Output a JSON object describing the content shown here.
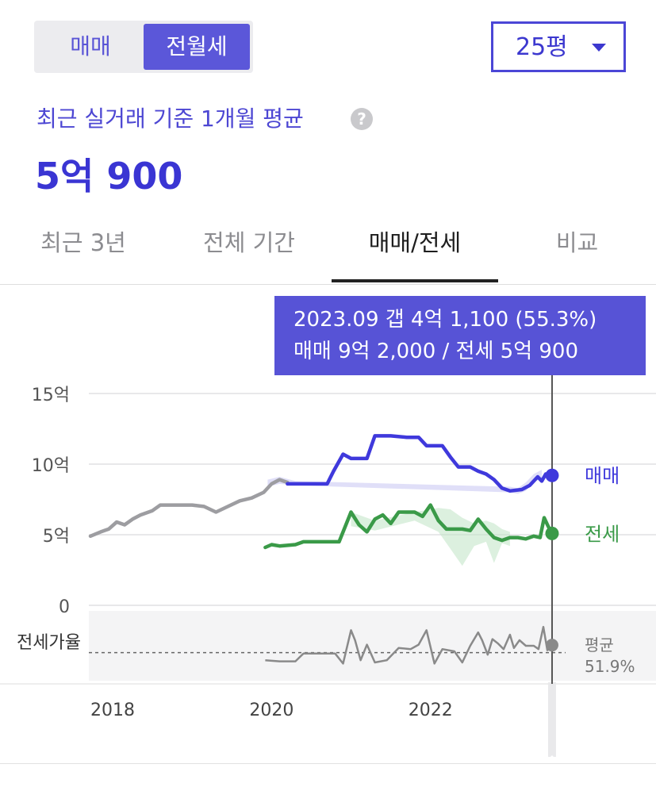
{
  "segment": {
    "items": [
      "매매",
      "전월세"
    ],
    "active": 1
  },
  "size_select": {
    "label": "25평"
  },
  "summary": {
    "subtitle": "최근 실거래 기준 1개월 평균",
    "help_glyph": "?",
    "price": "5억 900"
  },
  "tabs": {
    "items": [
      "최근 3년",
      "전체 기간",
      "매매/전세",
      "비교"
    ],
    "active": 2
  },
  "tooltip": {
    "line1": "2023.09  갭 4억 1,100 (55.3%)",
    "line2": "매매 9억 2,000 / 전세 5억 900"
  },
  "colors": {
    "accent": "#4a44d8",
    "sale": "#3f39dc",
    "jeonse": "#3a9a48",
    "ratio": "#8a8a8a"
  },
  "chart_data": {
    "type": "line",
    "y_unit": "억",
    "ylim": [
      0,
      15
    ],
    "yticks": [
      {
        "value": 15,
        "label": "15억"
      },
      {
        "value": 10,
        "label": "10억"
      },
      {
        "value": 5,
        "label": "5억"
      },
      {
        "value": 0,
        "label": "0"
      }
    ],
    "xlim": [
      2017.7,
      2023.7
    ],
    "xticks": [
      {
        "value": 2018,
        "label": "2018"
      },
      {
        "value": 2020,
        "label": "2020"
      },
      {
        "value": 2022,
        "label": "2022"
      }
    ],
    "series": [
      {
        "name": "매매",
        "segments": [
          [
            [
              2017.72,
              4.9
            ],
            [
              2017.85,
              5.2
            ],
            [
              2017.95,
              5.4
            ],
            [
              2018.05,
              5.9
            ],
            [
              2018.15,
              5.7
            ],
            [
              2018.25,
              6.1
            ],
            [
              2018.35,
              6.4
            ],
            [
              2018.5,
              6.7
            ],
            [
              2018.6,
              7.1
            ],
            [
              2018.8,
              7.1
            ],
            [
              2019.0,
              7.1
            ],
            [
              2019.15,
              7.0
            ],
            [
              2019.3,
              6.6
            ],
            [
              2019.45,
              7.0
            ],
            [
              2019.6,
              7.4
            ],
            [
              2019.75,
              7.6
            ],
            [
              2019.9,
              8.0
            ],
            [
              2020.0,
              8.6
            ],
            [
              2020.1,
              8.9
            ],
            [
              2020.2,
              8.7
            ]
          ],
          [
            [
              2020.2,
              8.6
            ],
            [
              2020.4,
              8.6
            ],
            [
              2020.7,
              8.6
            ],
            [
              2020.78,
              9.5
            ],
            [
              2020.9,
              10.7
            ],
            [
              2021.0,
              10.4
            ],
            [
              2021.2,
              10.4
            ],
            [
              2021.3,
              12.0
            ],
            [
              2021.5,
              12.0
            ],
            [
              2021.7,
              11.9
            ],
            [
              2021.85,
              11.9
            ],
            [
              2021.95,
              11.3
            ],
            [
              2022.15,
              11.3
            ],
            [
              2022.25,
              10.5
            ],
            [
              2022.35,
              9.8
            ],
            [
              2022.5,
              9.8
            ],
            [
              2022.6,
              9.5
            ],
            [
              2022.7,
              9.3
            ],
            [
              2022.8,
              8.9
            ],
            [
              2022.9,
              8.3
            ],
            [
              2023.0,
              8.1
            ],
            [
              2023.15,
              8.2
            ],
            [
              2023.25,
              8.5
            ],
            [
              2023.35,
              9.1
            ],
            [
              2023.4,
              8.8
            ],
            [
              2023.45,
              9.3
            ],
            [
              2023.53,
              9.2
            ]
          ]
        ],
        "band": [
          [
            2019.95,
            8.4,
            8.9
          ],
          [
            2020.1,
            8.6,
            9.1
          ],
          [
            2020.3,
            8.5,
            8.8
          ],
          [
            2023.0,
            8.0,
            8.4
          ],
          [
            2023.1,
            7.9,
            8.3
          ],
          [
            2023.2,
            8.1,
            8.7
          ],
          [
            2023.3,
            8.8,
            9.3
          ],
          [
            2023.4,
            8.9,
            9.6
          ]
        ]
      },
      {
        "name": "전세",
        "segments": [
          [
            [
              2019.92,
              4.1
            ],
            [
              2020.0,
              4.3
            ],
            [
              2020.1,
              4.2
            ],
            [
              2020.3,
              4.3
            ],
            [
              2020.4,
              4.5
            ],
            [
              2020.6,
              4.5
            ],
            [
              2020.85,
              4.5
            ],
            [
              2021.0,
              6.6
            ],
            [
              2021.1,
              5.7
            ],
            [
              2021.2,
              5.2
            ],
            [
              2021.3,
              6.1
            ],
            [
              2021.4,
              6.4
            ],
            [
              2021.5,
              5.8
            ],
            [
              2021.6,
              6.6
            ],
            [
              2021.8,
              6.6
            ],
            [
              2021.9,
              6.3
            ],
            [
              2022.0,
              7.1
            ],
            [
              2022.1,
              6.0
            ],
            [
              2022.2,
              5.4
            ],
            [
              2022.3,
              5.4
            ],
            [
              2022.4,
              5.4
            ],
            [
              2022.5,
              5.3
            ],
            [
              2022.6,
              6.1
            ],
            [
              2022.7,
              5.4
            ],
            [
              2022.8,
              4.8
            ],
            [
              2022.9,
              4.6
            ],
            [
              2023.0,
              4.8
            ],
            [
              2023.1,
              4.8
            ],
            [
              2023.2,
              4.7
            ],
            [
              2023.3,
              4.9
            ],
            [
              2023.38,
              4.8
            ],
            [
              2023.43,
              6.2
            ],
            [
              2023.48,
              5.6
            ],
            [
              2023.53,
              5.1
            ]
          ]
        ],
        "band": [
          [
            2021.0,
            5.6,
            6.6
          ],
          [
            2021.3,
            5.3,
            6.0
          ],
          [
            2021.8,
            6.0,
            6.6
          ],
          [
            2022.1,
            5.2,
            6.9
          ],
          [
            2022.25,
            4.0,
            6.8
          ],
          [
            2022.4,
            2.8,
            6.2
          ],
          [
            2022.55,
            4.2,
            5.8
          ],
          [
            2022.7,
            4.5,
            6.0
          ],
          [
            2022.8,
            3.0,
            5.8
          ],
          [
            2022.9,
            4.4,
            5.4
          ],
          [
            2023.0,
            4.2,
            5.2
          ]
        ]
      }
    ],
    "end_labels": [
      {
        "series": "매매",
        "value": 9.2,
        "label": "매매"
      },
      {
        "series": "전세",
        "value": 5.09,
        "label": "전세"
      }
    ],
    "ratio": {
      "label": "전세가율",
      "average_label": "평균",
      "average": 51.9,
      "average_text": "51.9%",
      "ylim": [
        40,
        70
      ],
      "points": [
        [
          2019.92,
          48.5
        ],
        [
          2020.1,
          48.0
        ],
        [
          2020.3,
          48.0
        ],
        [
          2020.4,
          51.5
        ],
        [
          2020.8,
          51.5
        ],
        [
          2020.9,
          47.0
        ],
        [
          2021.0,
          62.0
        ],
        [
          2021.05,
          57.5
        ],
        [
          2021.12,
          48.5
        ],
        [
          2021.2,
          55.5
        ],
        [
          2021.3,
          47.5
        ],
        [
          2021.45,
          48.5
        ],
        [
          2021.6,
          54.0
        ],
        [
          2021.75,
          53.5
        ],
        [
          2021.85,
          55.5
        ],
        [
          2021.95,
          62.0
        ],
        [
          2022.05,
          47.0
        ],
        [
          2022.15,
          53.5
        ],
        [
          2022.3,
          52.5
        ],
        [
          2022.4,
          47.5
        ],
        [
          2022.5,
          55.0
        ],
        [
          2022.6,
          61.0
        ],
        [
          2022.65,
          57.5
        ],
        [
          2022.72,
          51.0
        ],
        [
          2022.78,
          58.0
        ],
        [
          2022.85,
          56.0
        ],
        [
          2022.92,
          53.5
        ],
        [
          2023.0,
          60.0
        ],
        [
          2023.05,
          54.0
        ],
        [
          2023.12,
          57.5
        ],
        [
          2023.2,
          55.0
        ],
        [
          2023.3,
          55.0
        ],
        [
          2023.36,
          53.5
        ],
        [
          2023.42,
          63.5
        ],
        [
          2023.47,
          53.0
        ],
        [
          2023.53,
          55.3
        ]
      ]
    },
    "cursor": {
      "x": 2023.53,
      "label": "2023.09"
    },
    "grid": true
  }
}
